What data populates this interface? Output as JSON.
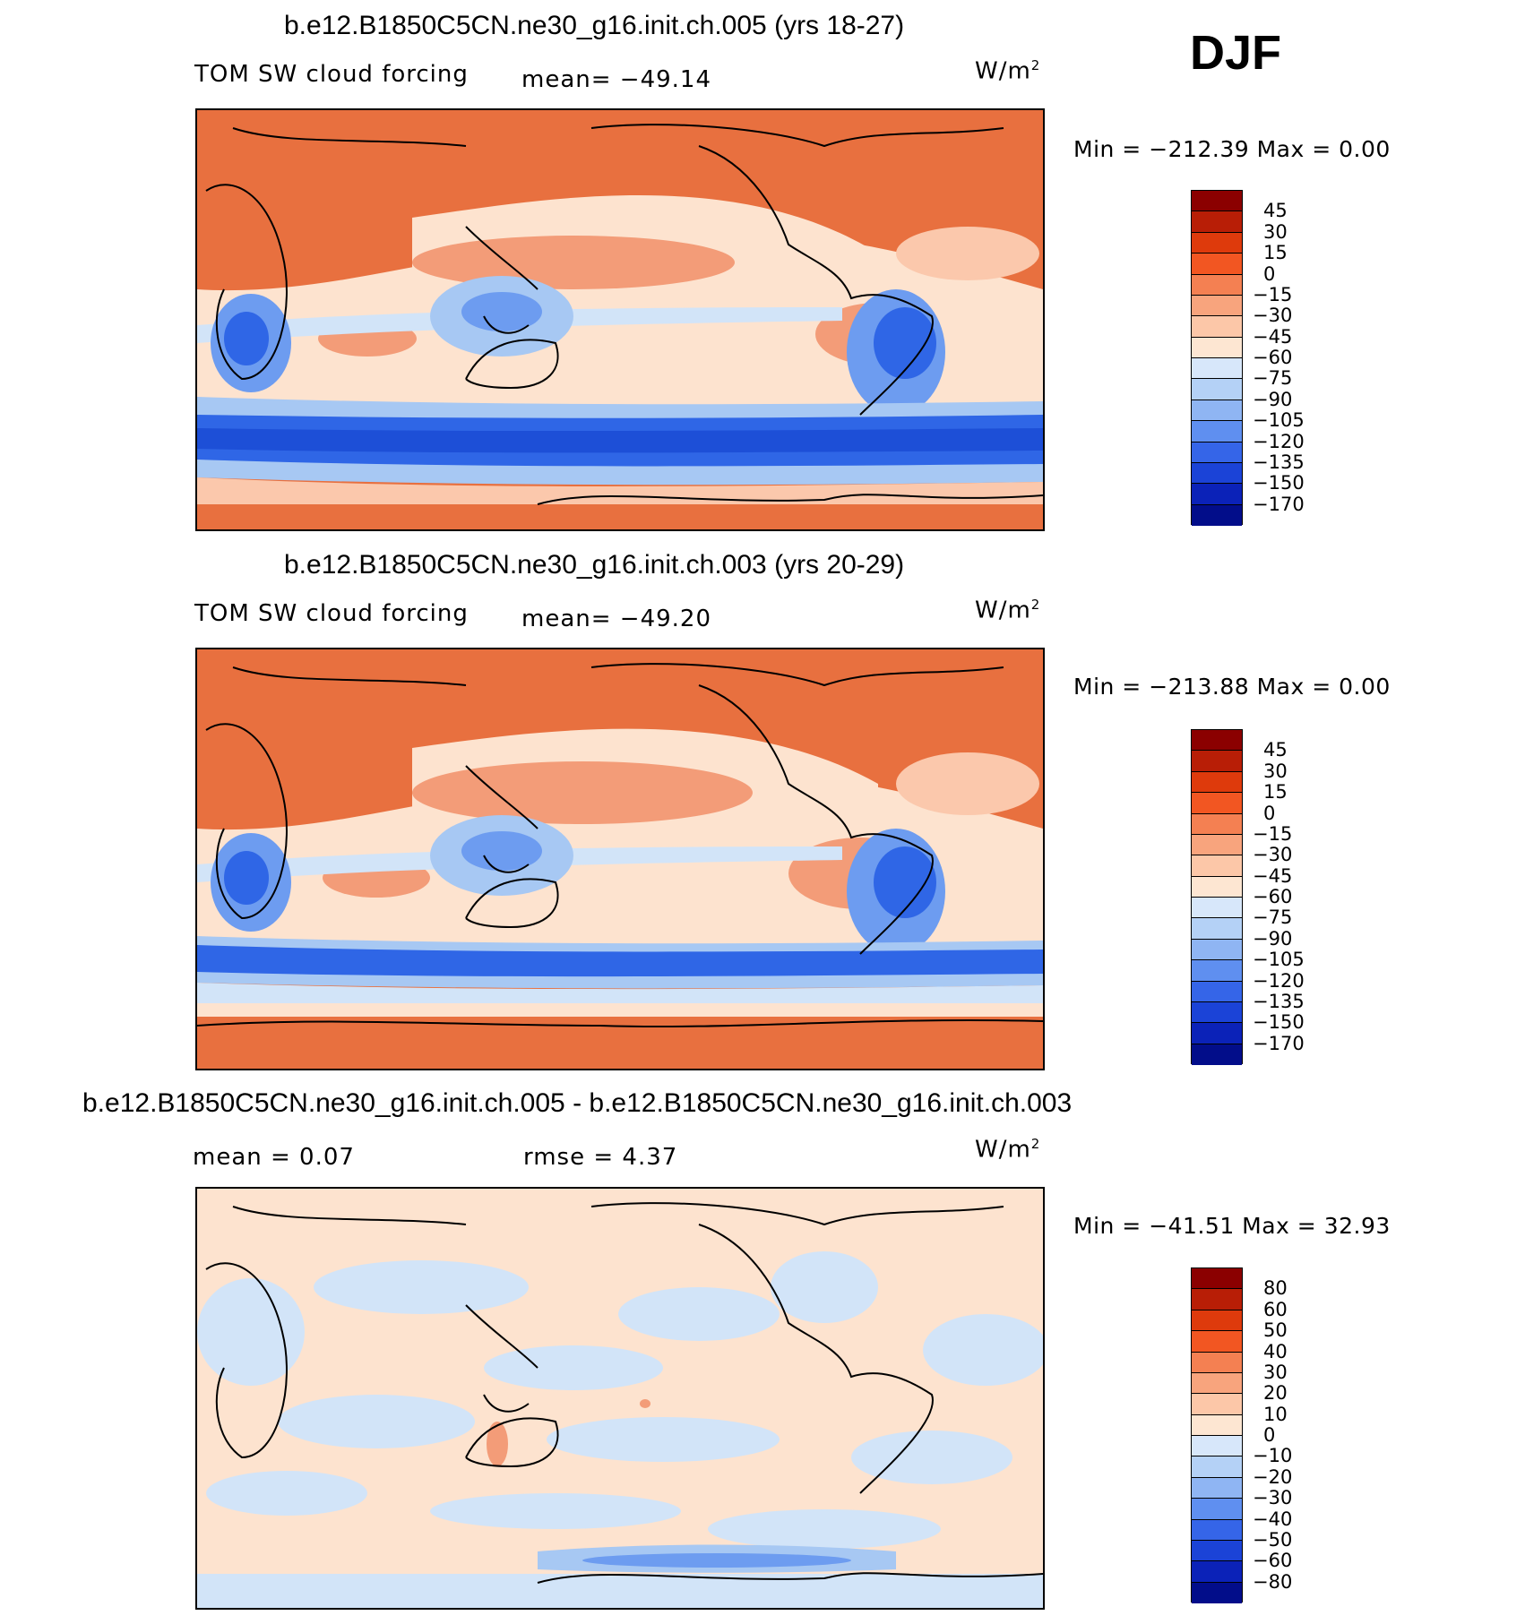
{
  "season": "DJF",
  "colors": {
    "fill_pos3": "#e8703f",
    "fill_pos2": "#f39c78",
    "fill_pos1": "#fbc8ac",
    "fill_zero": "#fde3cf",
    "fill_neg1": "#d2e4f8",
    "fill_neg2": "#a7c8f3",
    "fill_neg3": "#6d9cf0",
    "fill_neg4": "#2f66e6",
    "fill_neg5": "#0c38c8",
    "land_outline": "#000000"
  },
  "panels": [
    {
      "title": "b.e12.B1850C5CN.ne30_g16.init.ch.005 (yrs 18-27)",
      "left_label": "TOM SW cloud forcing",
      "stat1": "mean= −49.14",
      "stat2": "",
      "units": "W/m",
      "units_sup": "2",
      "minmax": "Min = −212.39 Max =   0.00",
      "colorbar": {
        "labels": [
          "45",
          "30",
          "15",
          "0",
          "−15",
          "−30",
          "−45",
          "−60",
          "−75",
          "−90",
          "−105",
          "−120",
          "−135",
          "−150",
          "−170"
        ],
        "colors": [
          "#8b0000",
          "#b81e06",
          "#de3a0c",
          "#f25622",
          "#f48052",
          "#f8a47d",
          "#fcc7a8",
          "#fde6d2",
          "#d7e7fa",
          "#b4d1f6",
          "#8fb5f3",
          "#5f8ff0",
          "#3565e8",
          "#1b43d7",
          "#0b22b8",
          "#020d8a"
        ]
      }
    },
    {
      "title": "b.e12.B1850C5CN.ne30_g16.init.ch.003 (yrs 20-29)",
      "left_label": "TOM SW cloud forcing",
      "stat1": "mean= −49.20",
      "stat2": "",
      "units": "W/m",
      "units_sup": "2",
      "minmax": "Min = −213.88 Max =   0.00",
      "colorbar": {
        "labels": [
          "45",
          "30",
          "15",
          "0",
          "−15",
          "−30",
          "−45",
          "−60",
          "−75",
          "−90",
          "−105",
          "−120",
          "−135",
          "−150",
          "−170"
        ],
        "colors": [
          "#8b0000",
          "#b81e06",
          "#de3a0c",
          "#f25622",
          "#f48052",
          "#f8a47d",
          "#fcc7a8",
          "#fde6d2",
          "#d7e7fa",
          "#b4d1f6",
          "#8fb5f3",
          "#5f8ff0",
          "#3565e8",
          "#1b43d7",
          "#0b22b8",
          "#020d8a"
        ]
      }
    },
    {
      "title": "b.e12.B1850C5CN.ne30_g16.init.ch.005 - b.e12.B1850C5CN.ne30_g16.init.ch.003",
      "left_label": "mean =   0.07",
      "stat1": "",
      "stat2": "rmse =   4.37",
      "units": "W/m",
      "units_sup": "2",
      "minmax": "Min = −41.51 Max =  32.93",
      "colorbar": {
        "labels": [
          "80",
          "60",
          "50",
          "40",
          "30",
          "20",
          "10",
          "0",
          "−10",
          "−20",
          "−30",
          "−40",
          "−50",
          "−60",
          "−80"
        ],
        "colors": [
          "#8b0000",
          "#b81e06",
          "#de3a0c",
          "#f25622",
          "#f48052",
          "#f8a47d",
          "#fcc7a8",
          "#fde6d2",
          "#d7e7fa",
          "#b4d1f6",
          "#8fb5f3",
          "#5f8ff0",
          "#3565e8",
          "#1b43d7",
          "#0b22b8",
          "#020d8a"
        ]
      }
    }
  ]
}
